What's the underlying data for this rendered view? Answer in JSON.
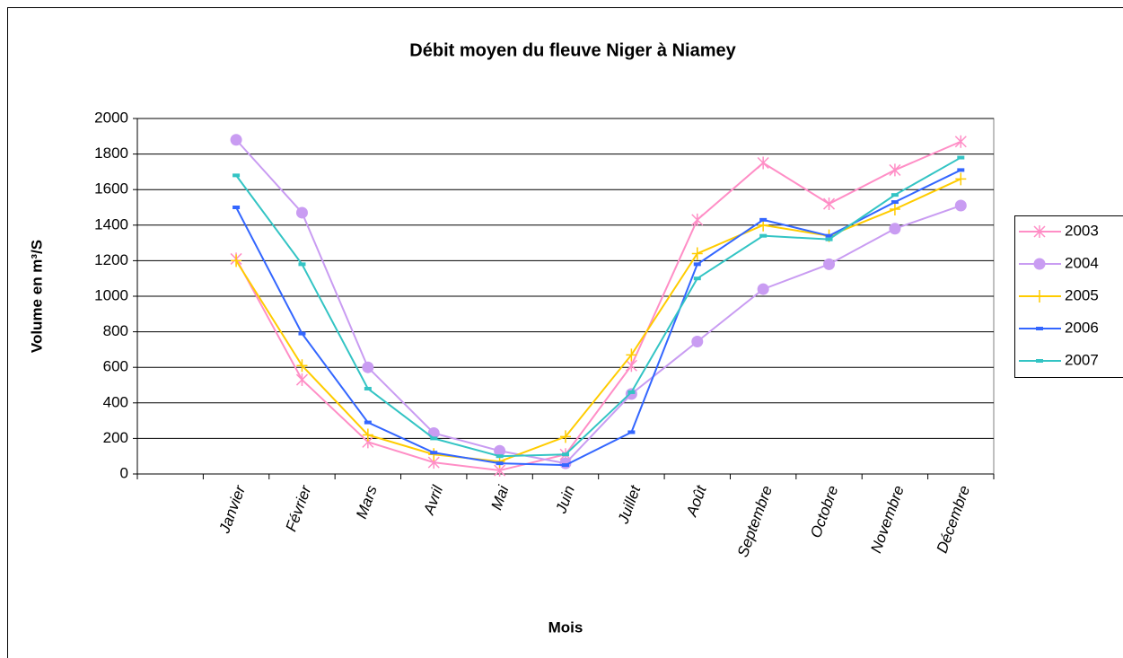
{
  "chart_data": {
    "type": "line",
    "title": "Débit moyen du fleuve Niger à Niamey",
    "xlabel": "Mois",
    "ylabel": "Volume en m³/S",
    "categories": [
      null,
      "Janvier",
      "Février",
      "Mars",
      "Avril",
      "Mai",
      "Juin",
      "Juillet",
      "Août",
      "Septembre",
      "Octobre",
      "Novembre",
      "Décembre"
    ],
    "series": [
      {
        "name": "2003",
        "color": "#ff8ec6",
        "marker": "asterisk",
        "values": [
          null,
          1210,
          530,
          180,
          65,
          20,
          110,
          610,
          1430,
          1750,
          1520,
          1710,
          1870
        ]
      },
      {
        "name": "2004",
        "color": "#c99cf2",
        "marker": "circle",
        "values": [
          null,
          1880,
          1470,
          600,
          230,
          130,
          60,
          450,
          745,
          1040,
          1180,
          1380,
          1510
        ]
      },
      {
        "name": "2005",
        "color": "#ffcc00",
        "marker": "plus",
        "values": [
          null,
          1200,
          610,
          220,
          110,
          70,
          210,
          670,
          1240,
          1400,
          1340,
          1490,
          1660
        ]
      },
      {
        "name": "2006",
        "color": "#3366ff",
        "marker": "dash",
        "values": [
          null,
          1500,
          790,
          290,
          120,
          60,
          50,
          235,
          1180,
          1430,
          1340,
          1530,
          1710
        ]
      },
      {
        "name": "2007",
        "color": "#33c4c4",
        "marker": "dash",
        "values": [
          null,
          1680,
          1180,
          480,
          200,
          100,
          110,
          460,
          1100,
          1340,
          1320,
          1570,
          1780
        ]
      }
    ],
    "ylim": [
      0,
      2000
    ],
    "yticks": [
      0,
      200,
      400,
      600,
      800,
      1000,
      1200,
      1400,
      1600,
      1800,
      2000
    ],
    "grid": true,
    "legend": "right"
  }
}
